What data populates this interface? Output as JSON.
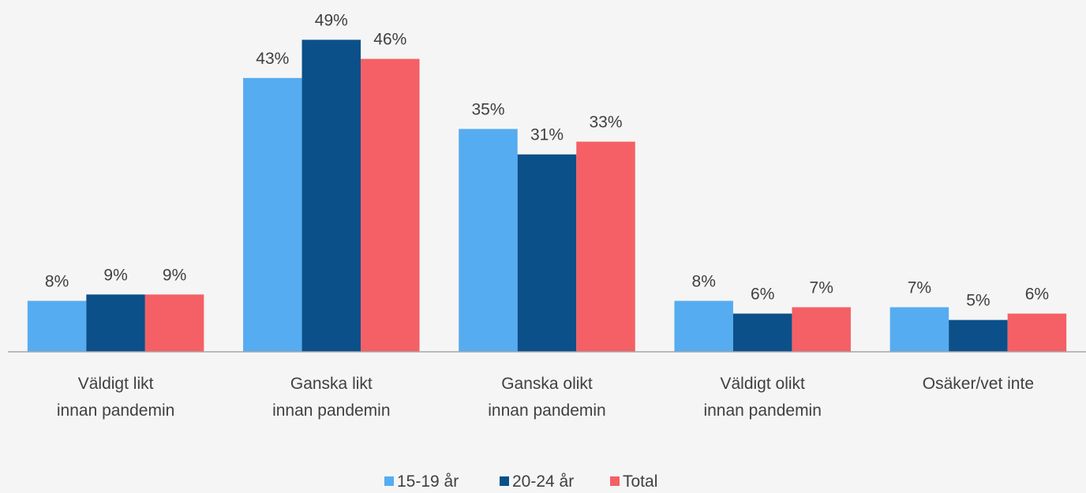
{
  "chart_data": {
    "type": "bar",
    "categories": [
      "Väldigt likt\ninnan pandemin",
      "Ganska likt\ninnan pandemin",
      "Ganska olikt\ninnan pandemin",
      "Väldigt olikt\ninnan pandemin",
      "Osäker/vet inte"
    ],
    "series": [
      {
        "name": "15-19 år",
        "color": "#56acf0",
        "values": [
          8,
          43,
          35,
          8,
          7
        ],
        "value_labels": [
          "8%",
          "43%",
          "35%",
          "8%",
          "7%"
        ]
      },
      {
        "name": "20-24 år",
        "color": "#0b5089",
        "values": [
          9,
          49,
          31,
          6,
          5
        ],
        "value_labels": [
          "9%",
          "49%",
          "31%",
          "6%",
          "5%"
        ]
      },
      {
        "name": "Total",
        "color": "#f46065",
        "values": [
          9,
          46,
          33,
          7,
          6
        ],
        "value_labels": [
          "9%",
          "46%",
          "33%",
          "7%",
          "6%"
        ]
      }
    ],
    "ylim": [
      0,
      55
    ],
    "legend": "bottom"
  }
}
